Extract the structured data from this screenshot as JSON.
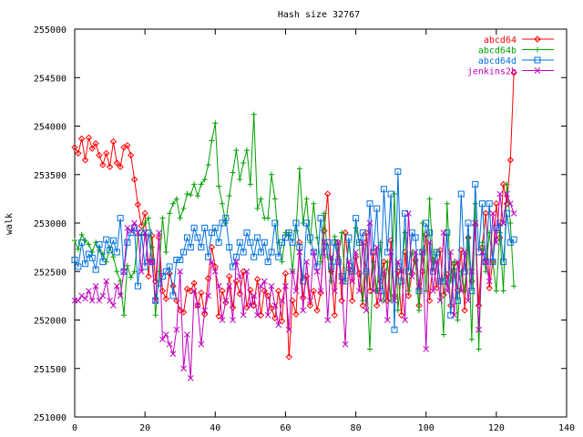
{
  "chart_data": {
    "type": "line",
    "title": "Hash size 32767",
    "xlabel": "",
    "ylabel": "walk",
    "xlim": [
      0,
      140
    ],
    "ylim": [
      251000,
      255000
    ],
    "xticks": [
      0,
      20,
      40,
      60,
      80,
      100,
      120,
      140
    ],
    "yticks": [
      251000,
      251500,
      252000,
      252500,
      253000,
      253500,
      254000,
      254500,
      255000
    ],
    "grid": false,
    "legend_position": "top-right",
    "series": [
      {
        "name": "abcd64",
        "color": "#ff0000",
        "marker": "diamond",
        "x": [
          0,
          1,
          2,
          3,
          4,
          5,
          6,
          7,
          8,
          9,
          10,
          11,
          12,
          13,
          14,
          15,
          16,
          17,
          18,
          19,
          20,
          21,
          22,
          23,
          24,
          25,
          26,
          27,
          28,
          29,
          30,
          31,
          32,
          33,
          34,
          35,
          36,
          37,
          38,
          39,
          40,
          41,
          42,
          43,
          44,
          45,
          46,
          47,
          48,
          49,
          50,
          51,
          52,
          53,
          54,
          55,
          56,
          57,
          58,
          59,
          60,
          61,
          62,
          63,
          64,
          65,
          66,
          67,
          68,
          69,
          70,
          71,
          72,
          73,
          74,
          75,
          76,
          77,
          78,
          79,
          80,
          81,
          82,
          83,
          84,
          85,
          86,
          87,
          88,
          89,
          90,
          91,
          92,
          93,
          94,
          95,
          96,
          97,
          98,
          99,
          100,
          101,
          102,
          103,
          104,
          105,
          106,
          107,
          108,
          109,
          110,
          111,
          112,
          113,
          114,
          115,
          116,
          117,
          118,
          119,
          120,
          121,
          122,
          123,
          124,
          125
        ],
        "values": [
          253780,
          253720,
          253870,
          253650,
          253880,
          253770,
          253820,
          253700,
          253600,
          253720,
          253580,
          253840,
          253620,
          253580,
          253780,
          253800,
          253700,
          253450,
          253190,
          252970,
          253100,
          252450,
          252870,
          252400,
          252850,
          252300,
          252220,
          252480,
          252350,
          252200,
          252100,
          252080,
          252320,
          252300,
          252380,
          252150,
          252280,
          252060,
          252430,
          252750,
          252550,
          252040,
          252300,
          252180,
          252450,
          252130,
          252400,
          252270,
          252500,
          252130,
          252310,
          252150,
          252420,
          252050,
          252300,
          252250,
          252120,
          252020,
          252300,
          251990,
          252480,
          251620,
          252200,
          252060,
          252800,
          252230,
          252450,
          252150,
          252300,
          252100,
          252280,
          252920,
          253300,
          252500,
          252050,
          252800,
          252200,
          252900,
          252530,
          252200,
          252650,
          252480,
          252150,
          252900,
          252300,
          252700,
          252150,
          252400,
          252600,
          252200,
          252820,
          252250,
          252500,
          252050,
          252700,
          252250,
          252480,
          252620,
          252150,
          252500,
          252880,
          252200,
          252620,
          252330,
          252720,
          252260,
          252470,
          252150,
          252580,
          252310,
          252720,
          252100,
          252850,
          252400,
          252980,
          252150,
          252750,
          253100,
          252330,
          252600,
          253200,
          252850,
          253400,
          253200,
          253650,
          254550
        ]
      },
      {
        "name": "abcd64b",
        "color": "#00a000",
        "marker": "plus",
        "x": [
          0,
          1,
          2,
          3,
          4,
          5,
          6,
          7,
          8,
          9,
          10,
          11,
          12,
          13,
          14,
          15,
          16,
          17,
          18,
          19,
          20,
          21,
          22,
          23,
          24,
          25,
          26,
          27,
          28,
          29,
          30,
          31,
          32,
          33,
          34,
          35,
          36,
          37,
          38,
          39,
          40,
          41,
          42,
          43,
          44,
          45,
          46,
          47,
          48,
          49,
          50,
          51,
          52,
          53,
          54,
          55,
          56,
          57,
          58,
          59,
          60,
          61,
          62,
          63,
          64,
          65,
          66,
          67,
          68,
          69,
          70,
          71,
          72,
          73,
          74,
          75,
          76,
          77,
          78,
          79,
          80,
          81,
          82,
          83,
          84,
          85,
          86,
          87,
          88,
          89,
          90,
          91,
          92,
          93,
          94,
          95,
          96,
          97,
          98,
          99,
          100,
          101,
          102,
          103,
          104,
          105,
          106,
          107,
          108,
          109,
          110,
          111,
          112,
          113,
          114,
          115,
          116,
          117,
          118,
          119,
          120,
          121,
          122,
          123,
          124,
          125
        ],
        "values": [
          252820,
          252730,
          252880,
          252820,
          252780,
          252700,
          252800,
          252720,
          252680,
          252600,
          252750,
          252650,
          252500,
          252400,
          252050,
          252560,
          252440,
          252500,
          252870,
          252880,
          253000,
          253050,
          252750,
          252050,
          252500,
          253050,
          252700,
          253100,
          253200,
          253250,
          253050,
          253150,
          253300,
          253290,
          253400,
          253280,
          253400,
          253450,
          253600,
          253850,
          254030,
          253380,
          253200,
          253000,
          253280,
          253520,
          253750,
          253450,
          253620,
          253750,
          253400,
          254120,
          253150,
          253250,
          253050,
          253050,
          253500,
          253250,
          252800,
          252600,
          252900,
          252900,
          252500,
          252920,
          253560,
          253000,
          253250,
          252800,
          253200,
          252850,
          252600,
          253100,
          252650,
          252400,
          252860,
          252650,
          252900,
          252400,
          252800,
          252500,
          252950,
          252800,
          252200,
          252500,
          251700,
          252600,
          252300,
          252800,
          252200,
          252600,
          252200,
          253300,
          252100,
          252500,
          252900,
          252300,
          252700,
          252600,
          252100,
          253000,
          252300,
          253250,
          252600,
          252700,
          252400,
          251850,
          253200,
          252400,
          252600,
          252000,
          252500,
          252300,
          252850,
          251800,
          253200,
          251700,
          252800,
          252500,
          252900,
          252600,
          252300,
          252900,
          252300,
          253400,
          253000,
          252350
        ]
      },
      {
        "name": "abcd64d",
        "color": "#0070e0",
        "marker": "square",
        "x": [
          0,
          1,
          2,
          3,
          4,
          5,
          6,
          7,
          8,
          9,
          10,
          11,
          12,
          13,
          14,
          15,
          16,
          17,
          18,
          19,
          20,
          21,
          22,
          23,
          24,
          25,
          26,
          27,
          28,
          29,
          30,
          31,
          32,
          33,
          34,
          35,
          36,
          37,
          38,
          39,
          40,
          41,
          42,
          43,
          44,
          45,
          46,
          47,
          48,
          49,
          50,
          51,
          52,
          53,
          54,
          55,
          56,
          57,
          58,
          59,
          60,
          61,
          62,
          63,
          64,
          65,
          66,
          67,
          68,
          69,
          70,
          71,
          72,
          73,
          74,
          75,
          76,
          77,
          78,
          79,
          80,
          81,
          82,
          83,
          84,
          85,
          86,
          87,
          88,
          89,
          90,
          91,
          92,
          93,
          94,
          95,
          96,
          97,
          98,
          99,
          100,
          101,
          102,
          103,
          104,
          105,
          106,
          107,
          108,
          109,
          110,
          111,
          112,
          113,
          114,
          115,
          116,
          117,
          118,
          119,
          120,
          121,
          122,
          123,
          124,
          125
        ],
        "values": [
          252620,
          252550,
          252800,
          252580,
          252680,
          252640,
          252520,
          252780,
          252600,
          252830,
          252720,
          252820,
          252700,
          253050,
          252500,
          252800,
          252900,
          252950,
          252350,
          252900,
          252550,
          252900,
          252600,
          252200,
          252380,
          252450,
          252500,
          252550,
          252250,
          252620,
          252620,
          252700,
          252850,
          252750,
          252950,
          252850,
          252750,
          252950,
          252650,
          252900,
          252950,
          252800,
          253000,
          253050,
          252750,
          252550,
          252650,
          252800,
          252700,
          252900,
          252800,
          252650,
          252850,
          252700,
          252800,
          252600,
          252700,
          253000,
          252650,
          252800,
          252850,
          252900,
          252800,
          253000,
          252750,
          252400,
          253000,
          252850,
          252700,
          252550,
          253050,
          252700,
          252800,
          252550,
          252800,
          252600,
          252450,
          252400,
          252850,
          252500,
          253050,
          252800,
          252900,
          252500,
          253200,
          252700,
          253150,
          252300,
          253350,
          252700,
          253300,
          251900,
          253530,
          252400,
          253100,
          252500,
          252900,
          252850,
          252300,
          252700,
          253000,
          252900,
          252500,
          252700,
          252400,
          252400,
          252900,
          252050,
          252500,
          252200,
          253300,
          252500,
          253000,
          252300,
          253400,
          252700,
          253200,
          252600,
          253200,
          252600,
          252950,
          253000,
          252600,
          253100,
          252800,
          252830
        ]
      },
      {
        "name": "jenkins2b",
        "color": "#c000c0",
        "marker": "cross",
        "x": [
          0,
          1,
          2,
          3,
          4,
          5,
          6,
          7,
          8,
          9,
          10,
          11,
          12,
          13,
          14,
          15,
          16,
          17,
          18,
          19,
          20,
          21,
          22,
          23,
          24,
          25,
          26,
          27,
          28,
          29,
          30,
          31,
          32,
          33,
          34,
          35,
          36,
          37,
          38,
          39,
          40,
          41,
          42,
          43,
          44,
          45,
          46,
          47,
          48,
          49,
          50,
          51,
          52,
          53,
          54,
          55,
          56,
          57,
          58,
          59,
          60,
          61,
          62,
          63,
          64,
          65,
          66,
          67,
          68,
          69,
          70,
          71,
          72,
          73,
          74,
          75,
          76,
          77,
          78,
          79,
          80,
          81,
          82,
          83,
          84,
          85,
          86,
          87,
          88,
          89,
          90,
          91,
          92,
          93,
          94,
          95,
          96,
          97,
          98,
          99,
          100,
          101,
          102,
          103,
          104,
          105,
          106,
          107,
          108,
          109,
          110,
          111,
          112,
          113,
          114,
          115,
          116,
          117,
          118,
          119,
          120,
          121,
          122,
          123,
          124,
          125
        ],
        "values": [
          252200,
          252200,
          252250,
          252220,
          252300,
          252200,
          252350,
          252200,
          252250,
          252400,
          252200,
          252150,
          252350,
          252250,
          252500,
          252950,
          252920,
          253000,
          252900,
          252500,
          252900,
          252600,
          252600,
          252200,
          252900,
          251800,
          251850,
          251750,
          251650,
          251900,
          252500,
          251500,
          251850,
          251400,
          252300,
          252150,
          251750,
          252100,
          252250,
          252600,
          252500,
          252350,
          252000,
          252200,
          252350,
          252000,
          252600,
          252450,
          252050,
          252500,
          252150,
          252250,
          252050,
          252350,
          252400,
          252050,
          252350,
          252150,
          251950,
          252200,
          252350,
          251900,
          252500,
          252300,
          252700,
          252100,
          252600,
          252200,
          252700,
          252500,
          252300,
          252800,
          252000,
          252650,
          252300,
          252800,
          252400,
          251750,
          252600,
          252400,
          252700,
          252300,
          252800,
          252100,
          253000,
          252300,
          252750,
          252200,
          252500,
          252000,
          252700,
          252200,
          252600,
          252500,
          252000,
          253100,
          252450,
          252700,
          252350,
          252700,
          251700,
          252800,
          252300,
          252600,
          252200,
          252900,
          252300,
          252700,
          252050,
          252600,
          252300,
          252700,
          252200,
          252500,
          253000,
          251900,
          252700,
          252600,
          252400,
          253100,
          252800,
          253300,
          253000,
          253300,
          253200,
          253100
        ]
      }
    ]
  }
}
